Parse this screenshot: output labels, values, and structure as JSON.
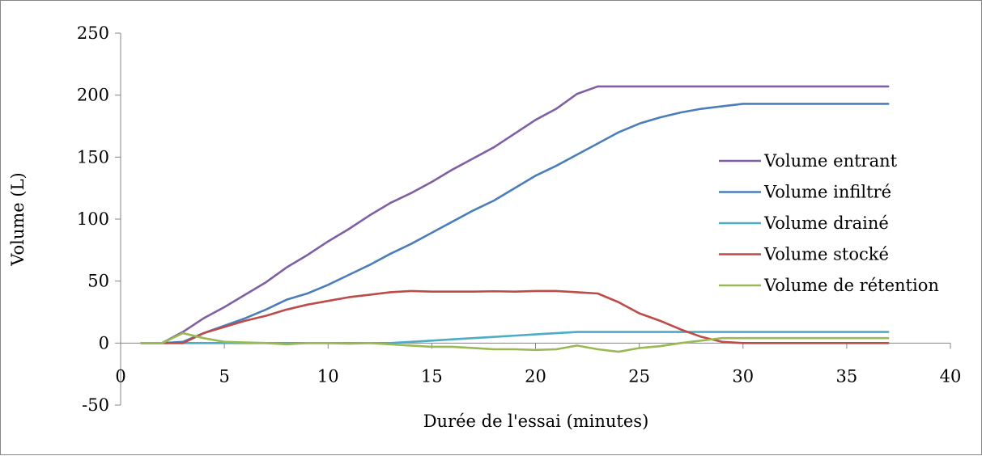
{
  "chart_data": {
    "type": "line",
    "title": "",
    "xlabel": "Durée de l'essai (minutes)",
    "ylabel": "Volume (L)",
    "xlim": [
      0,
      40
    ],
    "ylim": [
      -50,
      250
    ],
    "x_ticks": [
      0,
      5,
      10,
      15,
      20,
      25,
      30,
      35,
      40
    ],
    "y_ticks": [
      -50,
      0,
      50,
      100,
      150,
      200,
      250
    ],
    "x_tick_labels": [
      "0",
      "5",
      "10",
      "15",
      "20",
      "25",
      "30",
      "35",
      "40"
    ],
    "y_tick_labels": [
      "-50",
      "0",
      "50",
      "100",
      "150",
      "200",
      "250"
    ],
    "grid": false,
    "legend_position": "right",
    "x": [
      1,
      2,
      3,
      4,
      5,
      6,
      7,
      8,
      9,
      10,
      11,
      12,
      13,
      14,
      15,
      16,
      17,
      18,
      19,
      20,
      21,
      22,
      23,
      24,
      25,
      26,
      27,
      28,
      29,
      30,
      31,
      32,
      33,
      34,
      35,
      36,
      37
    ],
    "series": [
      {
        "name": "Volume entrant",
        "color": "#7f5fa3",
        "values": [
          0,
          0,
          9,
          20,
          29,
          39,
          49,
          61,
          71,
          82,
          92,
          103,
          113,
          121,
          130,
          140,
          149,
          158,
          169,
          180,
          189,
          201,
          207,
          207,
          207,
          207,
          207,
          207,
          207,
          207,
          207,
          207,
          207,
          207,
          207,
          207,
          207
        ]
      },
      {
        "name": "Volume infiltré",
        "color": "#4a7ebb",
        "values": [
          0,
          0,
          1,
          8,
          14,
          20,
          27,
          35,
          40,
          47,
          55,
          63,
          72,
          80,
          89,
          98,
          107,
          115,
          125,
          135,
          143,
          152,
          161,
          170,
          177,
          182,
          186,
          189,
          191,
          193,
          193,
          193,
          193,
          193,
          193,
          193,
          193
        ]
      },
      {
        "name": "Volume drainé",
        "color": "#4bacc6",
        "values": [
          0,
          0,
          0,
          0,
          0,
          0,
          0,
          0,
          0,
          0,
          0,
          0,
          0,
          1,
          2,
          3,
          4,
          5,
          6,
          7,
          8,
          9,
          9,
          9,
          9,
          9,
          9,
          9,
          9,
          9,
          9,
          9,
          9,
          9,
          9,
          9,
          9
        ]
      },
      {
        "name": "Volume stocké",
        "color": "#be4b48",
        "values": [
          0,
          0,
          0,
          8,
          13,
          18,
          22,
          27,
          31,
          34,
          37,
          39,
          41,
          42,
          41.5,
          41.5,
          41.5,
          41.8,
          41.5,
          42,
          42,
          41,
          40,
          33,
          24,
          18,
          11,
          5,
          1,
          0,
          0,
          0,
          0,
          0,
          0,
          0,
          0
        ]
      },
      {
        "name": "Volume de rétention",
        "color": "#98b954",
        "values": [
          0,
          0,
          8,
          4,
          1,
          0.5,
          0,
          -1,
          0,
          0,
          -0.5,
          0,
          -1,
          -2,
          -3,
          -3,
          -4,
          -5,
          -5,
          -5.5,
          -5,
          -2,
          -5,
          -7,
          -4,
          -2.5,
          0,
          2,
          4,
          4,
          4,
          4,
          4,
          4,
          4,
          4,
          4
        ]
      }
    ]
  }
}
